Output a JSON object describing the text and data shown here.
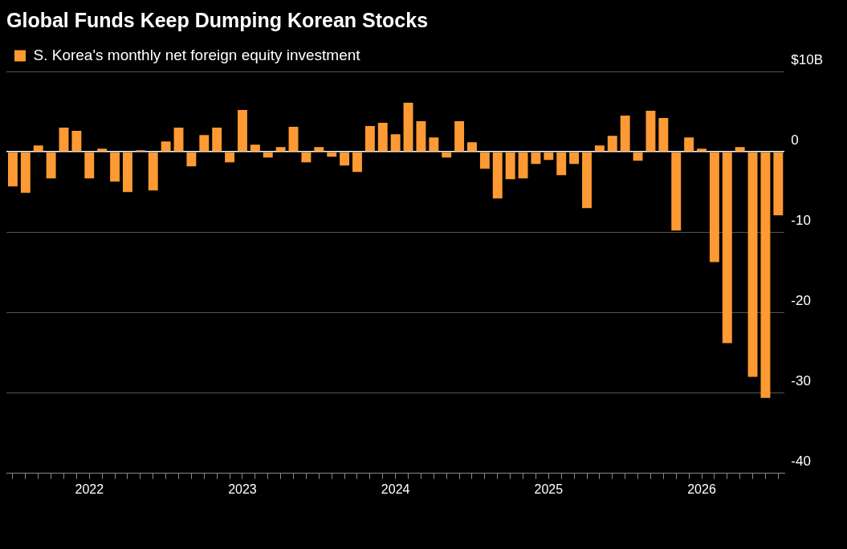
{
  "chart_data": {
    "type": "bar",
    "title": "Global Funds Keep Dumping Korean Stocks",
    "categories": [
      null,
      null,
      null,
      null,
      null,
      null,
      "2022",
      null,
      null,
      null,
      null,
      null,
      null,
      null,
      null,
      null,
      null,
      null,
      "2023",
      null,
      null,
      null,
      null,
      null,
      null,
      null,
      null,
      null,
      null,
      null,
      "2024",
      null,
      null,
      null,
      null,
      null,
      null,
      null,
      null,
      null,
      null,
      null,
      "2025",
      null,
      null,
      null,
      null,
      null,
      null,
      null,
      null,
      null,
      null,
      null,
      "2026",
      null,
      null,
      null,
      null,
      null,
      null
    ],
    "series": [
      {
        "name": "S. Korea's monthly net foreign equity investment",
        "color": "#fd9a33",
        "values": [
          -4.3,
          -5.1,
          0.8,
          -3.3,
          3.0,
          2.6,
          -3.3,
          0.4,
          -3.7,
          -5.0,
          0.2,
          -4.8,
          1.3,
          3.0,
          -1.8,
          2.1,
          3.0,
          -1.3,
          5.2,
          0.9,
          -0.7,
          0.6,
          3.1,
          -1.3,
          0.6,
          -0.6,
          -1.7,
          -2.5,
          3.2,
          3.6,
          2.2,
          6.1,
          3.8,
          1.8,
          -0.7,
          3.8,
          1.2,
          -2.1,
          -5.8,
          -3.4,
          -3.3,
          -1.5,
          -1.0,
          -2.9,
          -1.5,
          -7.0,
          0.8,
          2.0,
          4.5,
          -1.1,
          5.1,
          4.2,
          -9.8,
          1.8,
          0.4,
          -13.7,
          -23.8,
          0.6,
          -28.0,
          -30.6,
          -7.9
        ]
      }
    ],
    "ylim": [
      -40,
      10
    ],
    "yticks": [
      {
        "value": 10,
        "label": "$10B"
      },
      0,
      -10,
      -20,
      -30,
      -40
    ],
    "grid": "y",
    "legend": "top left"
  }
}
